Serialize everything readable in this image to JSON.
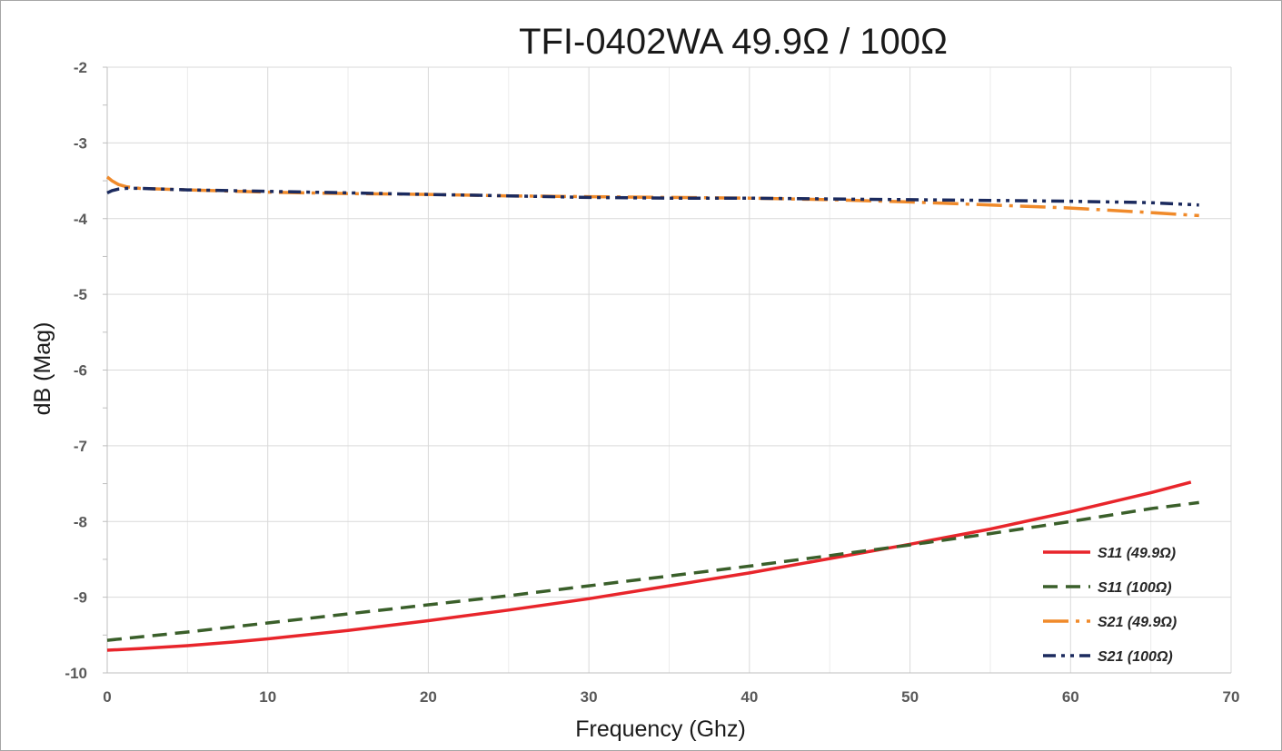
{
  "chart_data": {
    "type": "line",
    "title": "TFI-0402WA 49.9Ω / 100Ω",
    "xlabel": "Frequency (Ghz)",
    "ylabel": "dB (Mag)",
    "xlim": [
      0,
      70
    ],
    "ylim": [
      -10,
      -2
    ],
    "x_ticks": [
      0,
      10,
      20,
      30,
      40,
      50,
      60,
      70
    ],
    "y_ticks": [
      -2,
      -3,
      -4,
      -5,
      -6,
      -7,
      -8,
      -9,
      -10
    ],
    "grid": true,
    "legend_position": "bottom-right",
    "series": [
      {
        "name": "S11 (49.9Ω)",
        "color": "#e8252b",
        "style": "solid",
        "x": [
          0,
          2,
          5,
          8,
          10,
          15,
          20,
          25,
          30,
          35,
          40,
          45,
          50,
          55,
          60,
          65,
          67.5
        ],
        "y": [
          -9.7,
          -9.68,
          -9.64,
          -9.59,
          -9.55,
          -9.44,
          -9.31,
          -9.17,
          -9.02,
          -8.85,
          -8.68,
          -8.49,
          -8.3,
          -8.1,
          -7.87,
          -7.62,
          -7.48
        ]
      },
      {
        "name": "S11 (100Ω)",
        "color": "#3a5f2a",
        "style": "dashed",
        "x": [
          0,
          5,
          10,
          15,
          20,
          25,
          30,
          35,
          40,
          45,
          50,
          55,
          60,
          65,
          68
        ],
        "y": [
          -9.57,
          -9.46,
          -9.34,
          -9.22,
          -9.1,
          -8.98,
          -8.85,
          -8.72,
          -8.59,
          -8.45,
          -8.31,
          -8.16,
          -8.0,
          -7.83,
          -7.75
        ]
      },
      {
        "name": "S21 (49.9Ω)",
        "color": "#f08a2a",
        "style": "dash-dot",
        "x": [
          0,
          0.3,
          0.7,
          1.2,
          2,
          5,
          10,
          15,
          20,
          25,
          30,
          35,
          40,
          45,
          50,
          55,
          60,
          65,
          68
        ],
        "y": [
          -3.45,
          -3.5,
          -3.55,
          -3.58,
          -3.6,
          -3.62,
          -3.65,
          -3.67,
          -3.68,
          -3.7,
          -3.71,
          -3.72,
          -3.73,
          -3.75,
          -3.78,
          -3.82,
          -3.86,
          -3.92,
          -3.96
        ]
      },
      {
        "name": "S21 (100Ω)",
        "color": "#1b2a5e",
        "style": "dash-dot-dot",
        "x": [
          0,
          0.3,
          0.7,
          1.2,
          2,
          5,
          10,
          15,
          20,
          25,
          30,
          35,
          40,
          45,
          50,
          55,
          60,
          65,
          68
        ],
        "y": [
          -3.66,
          -3.63,
          -3.61,
          -3.6,
          -3.6,
          -3.62,
          -3.64,
          -3.66,
          -3.68,
          -3.7,
          -3.72,
          -3.73,
          -3.73,
          -3.74,
          -3.75,
          -3.76,
          -3.77,
          -3.79,
          -3.82
        ]
      }
    ]
  }
}
